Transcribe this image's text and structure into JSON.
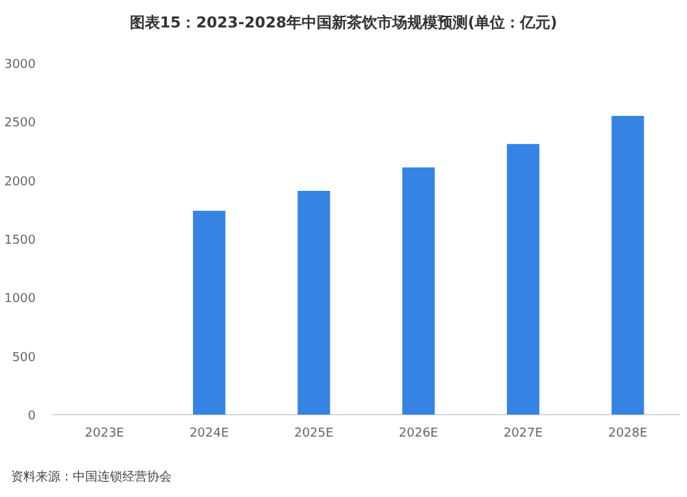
{
  "chart_data": {
    "type": "bar",
    "title": "图表15：2023-2028年中国新茶饮市场规模预测(单位：亿元)",
    "categories": [
      "2023E",
      "2024E",
      "2025E",
      "2026E",
      "2027E",
      "2028E"
    ],
    "values": [
      null,
      1740,
      1910,
      2110,
      2310,
      2550
    ],
    "color": "#3584e4",
    "ylim": [
      0,
      3000
    ],
    "yticks": [
      0,
      500,
      1000,
      1500,
      2000,
      2500,
      3000
    ],
    "grid": false,
    "annotations": [
      "资料来源：中国连锁经营协会"
    ]
  }
}
